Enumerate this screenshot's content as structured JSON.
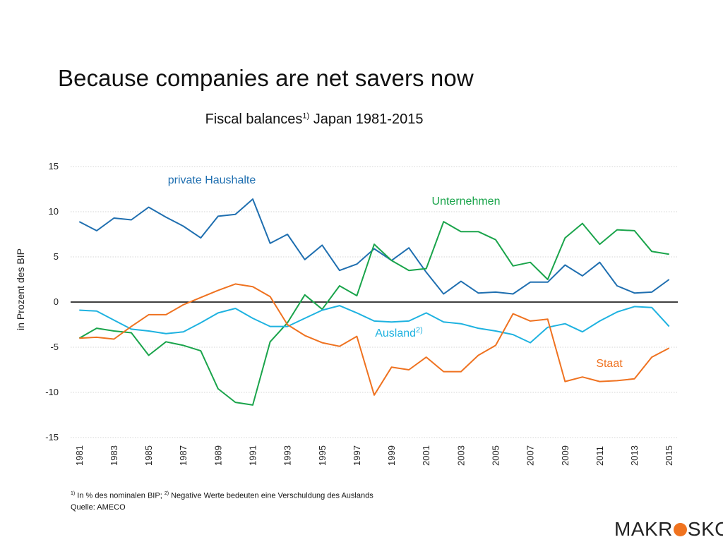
{
  "slide": {
    "title": "Because companies are net savers now"
  },
  "chart_data": {
    "type": "line",
    "title": "Fiscal balances",
    "title_sup": "1)",
    "title_suffix": " Japan 1981-2015",
    "ylabel": "in Prozent des BIP",
    "ylim": [
      -15,
      15
    ],
    "yticks": [
      15,
      10,
      5,
      0,
      -5,
      -10,
      -15
    ],
    "x": [
      1981,
      1982,
      1983,
      1984,
      1985,
      1986,
      1987,
      1988,
      1989,
      1990,
      1991,
      1992,
      1993,
      1994,
      1995,
      1996,
      1997,
      1998,
      1999,
      2000,
      2001,
      2002,
      2003,
      2004,
      2005,
      2006,
      2007,
      2008,
      2009,
      2010,
      2011,
      2012,
      2013,
      2014,
      2015
    ],
    "xtick_labels": [
      "1981",
      "1983",
      "1985",
      "1987",
      "1989",
      "1991",
      "1993",
      "1995",
      "1997",
      "1999",
      "2001",
      "2003",
      "2005",
      "2007",
      "2009",
      "2011",
      "2013",
      "2015"
    ],
    "series": [
      {
        "name": "private Haushalte",
        "label_sup": "",
        "color": "#1f6fb0",
        "values": [
          8.9,
          7.9,
          9.3,
          9.1,
          10.5,
          9.4,
          8.4,
          7.1,
          9.5,
          9.7,
          11.4,
          6.5,
          7.5,
          4.7,
          6.3,
          3.5,
          4.2,
          5.9,
          4.6,
          6.0,
          3.3,
          0.9,
          2.3,
          1.0,
          1.1,
          0.9,
          2.2,
          2.2,
          4.1,
          2.9,
          4.4,
          1.8,
          1.0,
          1.1,
          2.5
        ]
      },
      {
        "name": "Unternehmen",
        "label_sup": "",
        "color": "#1aa44b",
        "values": [
          -4.0,
          -2.9,
          -3.2,
          -3.4,
          -5.9,
          -4.4,
          -4.8,
          -5.4,
          -9.6,
          -11.1,
          -11.4,
          -4.4,
          -2.3,
          0.8,
          -0.8,
          1.8,
          0.7,
          6.4,
          4.6,
          3.5,
          3.7,
          8.9,
          7.8,
          7.8,
          6.9,
          4.0,
          4.4,
          2.5,
          7.1,
          8.7,
          6.4,
          8.0,
          7.9,
          5.6,
          5.3
        ]
      },
      {
        "name": "Ausland",
        "label_sup": "2)",
        "color": "#1eb2e0",
        "values": [
          -0.9,
          -1.0,
          -2.0,
          -3.0,
          -3.2,
          -3.5,
          -3.3,
          -2.3,
          -1.2,
          -0.7,
          -1.8,
          -2.7,
          -2.7,
          -1.8,
          -0.9,
          -0.4,
          -1.2,
          -2.1,
          -2.2,
          -2.1,
          -1.2,
          -2.2,
          -2.4,
          -2.9,
          -3.2,
          -3.6,
          -4.5,
          -2.8,
          -2.4,
          -3.3,
          -2.1,
          -1.1,
          -0.5,
          -0.6,
          -2.7
        ]
      },
      {
        "name": "Staat",
        "label_sup": "",
        "color": "#ef7220",
        "values": [
          -4.0,
          -3.9,
          -4.1,
          -2.7,
          -1.4,
          -1.4,
          -0.3,
          0.5,
          1.3,
          2.0,
          1.7,
          0.6,
          -2.5,
          -3.7,
          -4.5,
          -4.9,
          -3.8,
          -10.3,
          -7.2,
          -7.5,
          -6.1,
          -7.7,
          -7.7,
          -5.9,
          -4.8,
          -1.3,
          -2.1,
          -1.9,
          -8.8,
          -8.3,
          -8.8,
          -8.7,
          -8.5,
          -6.1,
          -5.1
        ]
      }
    ]
  },
  "footnote": {
    "sup1": "1)",
    "text1": " In % des nominalen BIP; ",
    "sup2": "2)",
    "text2": " Negative Werte bedeuten eine Verschuldung des Auslands",
    "source": "Quelle: AMECO"
  },
  "logo": {
    "left": "MAKR",
    "right": "SKOP",
    "dot_color": "#f0731f"
  }
}
